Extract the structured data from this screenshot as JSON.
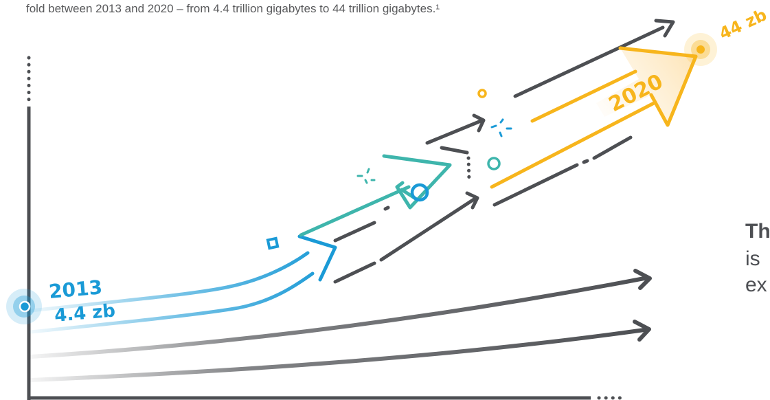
{
  "caption": "fold between 2013 and 2020 – from 4.4 trillion gigabytes to 44 trillion gigabytes.¹",
  "start_label": {
    "year": "2013",
    "value": "4.4 zb"
  },
  "end_label": {
    "year": "2020",
    "value": "44 zb"
  },
  "side_text": {
    "bold": "Th",
    "line1": "is",
    "line2": "ex"
  },
  "colors": {
    "blue": "#1a9ad6",
    "teal": "#3eb5ac",
    "gold": "#f7b51c",
    "dark_gray": "#4d4f53"
  }
}
